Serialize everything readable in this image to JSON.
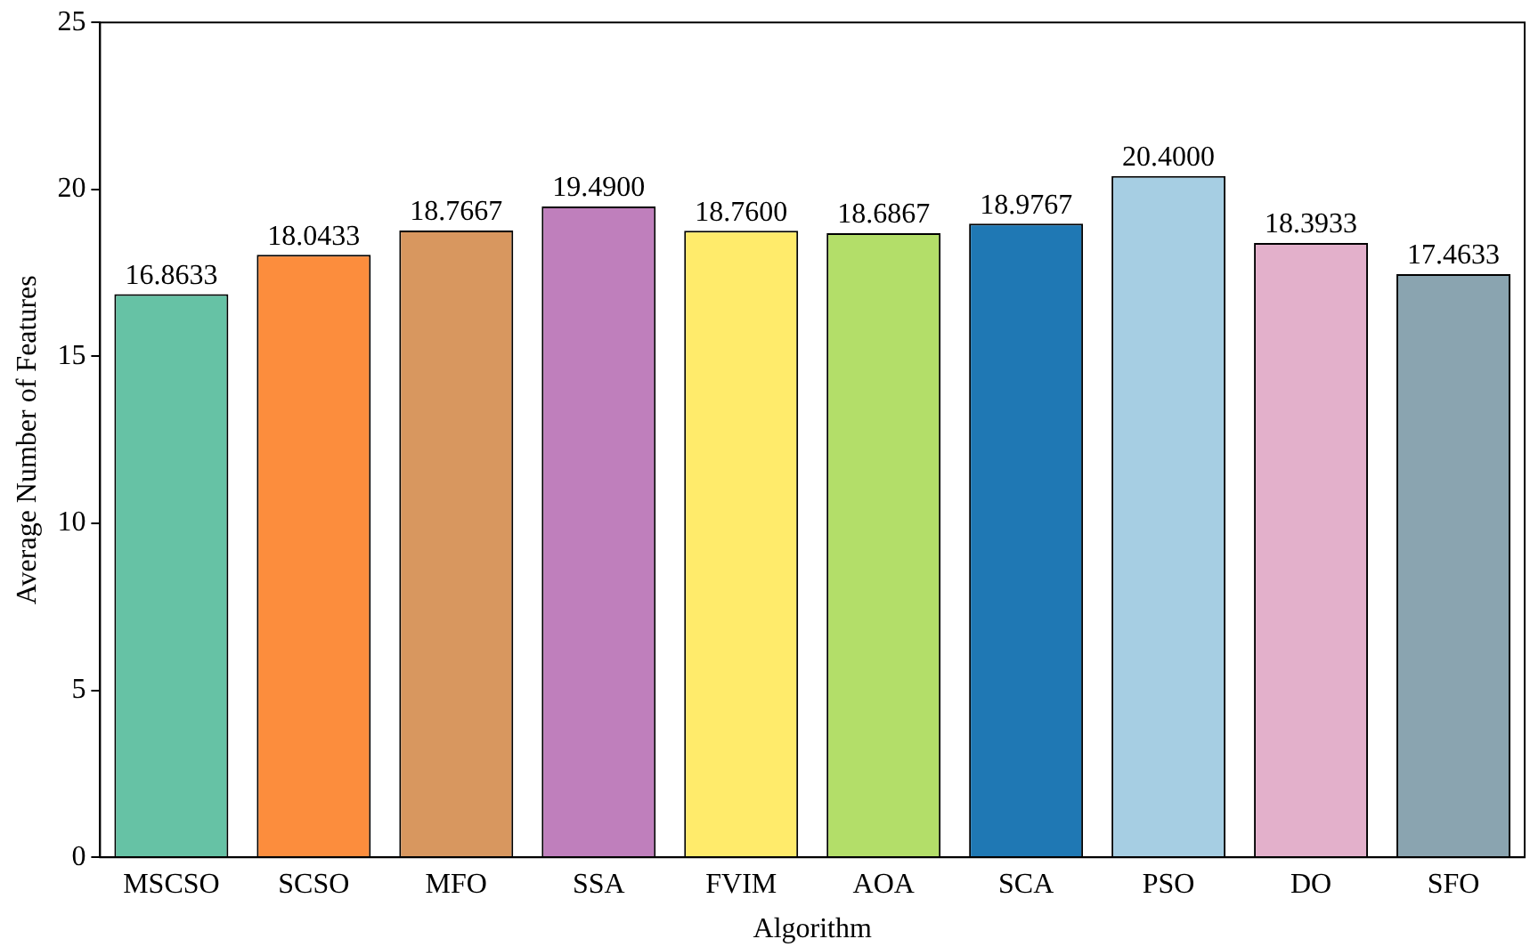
{
  "chart_data": {
    "type": "bar",
    "xlabel": "Algorithm",
    "ylabel": "Average Number of Features",
    "categories": [
      "MSCSO",
      "SCSO",
      "MFO",
      "SSA",
      "FVIM",
      "AOA",
      "SCA",
      "PSO",
      "DO",
      "SFO"
    ],
    "values": [
      16.8633,
      18.0433,
      18.7667,
      19.49,
      18.76,
      18.6867,
      18.9767,
      20.4,
      18.3933,
      17.4633
    ],
    "value_labels": [
      "16.8633",
      "18.0433",
      "18.7667",
      "19.4900",
      "18.7600",
      "18.6867",
      "18.9767",
      "20.4000",
      "18.3933",
      "17.4633"
    ],
    "colors": [
      "#66c2a5",
      "#fc8d3d",
      "#d8975f",
      "#bf7fbc",
      "#ffeb6b",
      "#b3de69",
      "#1f78b4",
      "#a6cee3",
      "#e3b0cb",
      "#8aa4b0"
    ],
    "ylim": [
      0,
      25
    ],
    "yticks": [
      0,
      5,
      10,
      15,
      20,
      25
    ],
    "grid": false,
    "legend": false
  }
}
